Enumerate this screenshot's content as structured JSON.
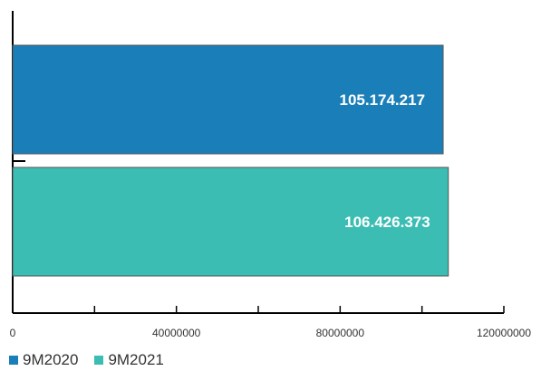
{
  "chart_data": {
    "type": "bar",
    "orientation": "horizontal",
    "series": [
      {
        "name": "9M2020",
        "value": 105174217,
        "label": "105.174.217",
        "color": "#1a7fb9"
      },
      {
        "name": "9M2021",
        "value": 106426373,
        "label": "106.426.373",
        "color": "#3bbdb3"
      }
    ],
    "xlim": [
      0,
      120000000
    ],
    "xticks": [
      0,
      20000000,
      40000000,
      60000000,
      80000000,
      100000000,
      120000000
    ],
    "xtick_labels": [
      "0",
      "",
      "40000000",
      "",
      "80000000",
      "",
      "120000000"
    ],
    "grid": false,
    "legend_position": "bottom-left"
  }
}
